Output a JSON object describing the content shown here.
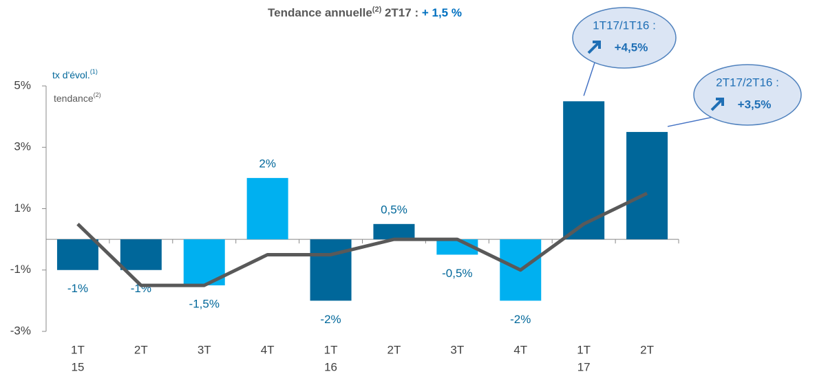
{
  "chart_data": {
    "type": "bar",
    "title": {
      "text": "Tendance annuelle",
      "sup": "(2)",
      "middle": " 2T17 : ",
      "highlight": "+ 1,5 %"
    },
    "legend": [
      {
        "text": "tx d'évol.",
        "sup": "(1)",
        "color": "#00679a"
      },
      {
        "text": "tendance",
        "sup": "(2)",
        "color": "#595959"
      }
    ],
    "categories": [
      "1T",
      "2T",
      "3T",
      "4T",
      "1T",
      "2T",
      "3T",
      "4T",
      "1T",
      "2T"
    ],
    "year_labels": [
      {
        "label": "15",
        "at": 0
      },
      {
        "label": "16",
        "at": 4
      },
      {
        "label": "17",
        "at": 8
      }
    ],
    "series": [
      {
        "name": "tx d'évol.",
        "type": "bar",
        "values": [
          -1,
          -1,
          -1.5,
          2,
          -2,
          0.5,
          -0.5,
          -2,
          4.5,
          3.5
        ],
        "value_labels": [
          "-1%",
          "-1%",
          "-1,5%",
          "2%",
          "-2%",
          "0,5%",
          "-0,5%",
          "-2%",
          null,
          null
        ],
        "colors": [
          "#00679a",
          "#00679a",
          "#00b0f0",
          "#00b0f0",
          "#00679a",
          "#00679a",
          "#00b0f0",
          "#00b0f0",
          "#00679a",
          "#00679a"
        ]
      },
      {
        "name": "tendance",
        "type": "line",
        "color": "#595959",
        "values": [
          0.5,
          -1.5,
          -1.5,
          -0.5,
          -0.5,
          0,
          0,
          -1,
          0.5,
          1.5
        ]
      }
    ],
    "ylim": [
      -3,
      5
    ],
    "yticks": [
      {
        "value": -3,
        "label": "-3%"
      },
      {
        "value": -1,
        "label": "-1%"
      },
      {
        "value": 1,
        "label": "1%"
      },
      {
        "value": 3,
        "label": "3%"
      },
      {
        "value": 5,
        "label": "5%"
      }
    ],
    "annotations": [
      {
        "label": "1T17/1T16 :",
        "value_label": "+4,5%",
        "at": 8
      },
      {
        "label": "2T17/2T16 :",
        "value_label": "+3,5%",
        "at": 9
      }
    ]
  }
}
